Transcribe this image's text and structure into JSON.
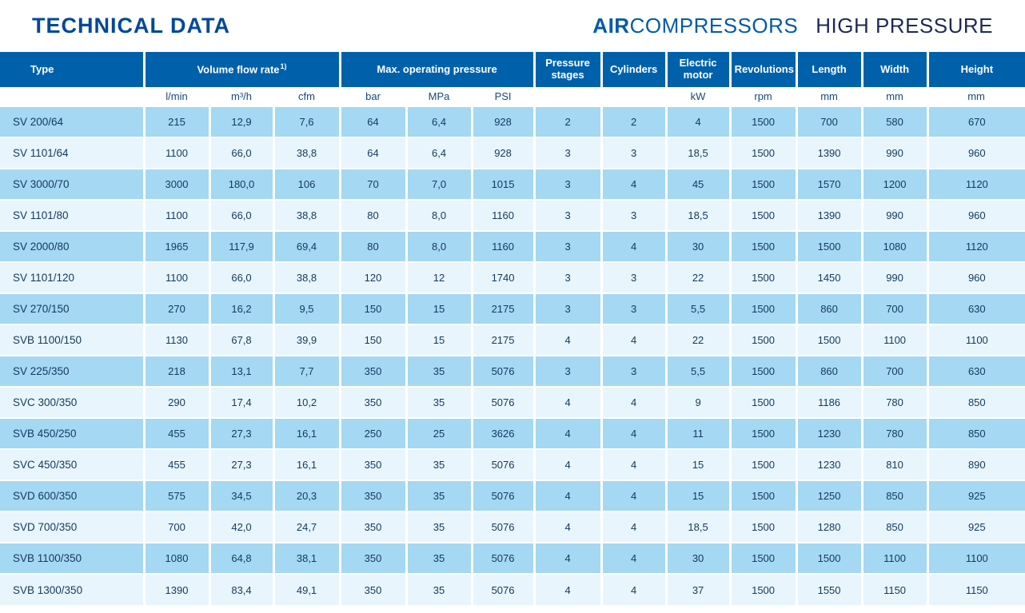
{
  "header": {
    "title": "TECHNICAL DATA",
    "brand_bold": "AIR",
    "brand_light": "COMPRESSORS",
    "product_line": "HIGH PRESSURE"
  },
  "colors": {
    "title_blue": "#004899",
    "brand_blue": "#005ba9",
    "product_line_navy": "#1e2a56",
    "header_row_blue": "#0061ab",
    "row_blue": "#a4d8f3",
    "row_light": "#e8f5fc",
    "cell_text": "#14395e",
    "grid_white": "#ffffff"
  },
  "table": {
    "group_headers": [
      {
        "label": "Type",
        "sup": "",
        "span": 1
      },
      {
        "label": "Volume flow rate",
        "sup": "1)",
        "span": 3
      },
      {
        "label": "Max. operating pressure",
        "sup": "",
        "span": 3
      },
      {
        "label": "Pressure stages",
        "sup": "",
        "span": 1
      },
      {
        "label": "Cylinders",
        "sup": "",
        "span": 1
      },
      {
        "label": "Electric motor",
        "sup": "",
        "span": 1
      },
      {
        "label": "Revolutions",
        "sup": "",
        "span": 1
      },
      {
        "label": "Length",
        "sup": "",
        "span": 1
      },
      {
        "label": "Width",
        "sup": "",
        "span": 1
      },
      {
        "label": "Height",
        "sup": "",
        "span": 1
      }
    ],
    "units": [
      "",
      "l/min",
      "m³/h",
      "cfm",
      "bar",
      "MPa",
      "PSI",
      "",
      "",
      "kW",
      "rpm",
      "mm",
      "mm",
      "mm"
    ],
    "rows": [
      {
        "type": "SV 200/64",
        "values": [
          "215",
          "12,9",
          "7,6",
          "64",
          "6,4",
          "928",
          "2",
          "2",
          "4",
          "1500",
          "700",
          "580",
          "670"
        ]
      },
      {
        "type": "SV 1101/64",
        "values": [
          "1100",
          "66,0",
          "38,8",
          "64",
          "6,4",
          "928",
          "3",
          "3",
          "18,5",
          "1500",
          "1390",
          "990",
          "960"
        ]
      },
      {
        "type": "SV 3000/70",
        "values": [
          "3000",
          "180,0",
          "106",
          "70",
          "7,0",
          "1015",
          "3",
          "4",
          "45",
          "1500",
          "1570",
          "1200",
          "1120"
        ]
      },
      {
        "type": "SV 1101/80",
        "values": [
          "1100",
          "66,0",
          "38,8",
          "80",
          "8,0",
          "1160",
          "3",
          "3",
          "18,5",
          "1500",
          "1390",
          "990",
          "960"
        ]
      },
      {
        "type": "SV 2000/80",
        "values": [
          "1965",
          "117,9",
          "69,4",
          "80",
          "8,0",
          "1160",
          "3",
          "4",
          "30",
          "1500",
          "1500",
          "1080",
          "1120"
        ]
      },
      {
        "type": "SV 1101/120",
        "values": [
          "1100",
          "66,0",
          "38,8",
          "120",
          "12",
          "1740",
          "3",
          "3",
          "22",
          "1500",
          "1450",
          "990",
          "960"
        ]
      },
      {
        "type": "SV 270/150",
        "values": [
          "270",
          "16,2",
          "9,5",
          "150",
          "15",
          "2175",
          "3",
          "3",
          "5,5",
          "1500",
          "860",
          "700",
          "630"
        ]
      },
      {
        "type": "SVB 1100/150",
        "values": [
          "1130",
          "67,8",
          "39,9",
          "150",
          "15",
          "2175",
          "4",
          "4",
          "22",
          "1500",
          "1500",
          "1100",
          "1100"
        ]
      },
      {
        "type": "SV 225/350",
        "values": [
          "218",
          "13,1",
          "7,7",
          "350",
          "35",
          "5076",
          "3",
          "3",
          "5,5",
          "1500",
          "860",
          "700",
          "630"
        ]
      },
      {
        "type": "SVC 300/350",
        "values": [
          "290",
          "17,4",
          "10,2",
          "350",
          "35",
          "5076",
          "4",
          "4",
          "9",
          "1500",
          "1186",
          "780",
          "850"
        ]
      },
      {
        "type": "SVB 450/250",
        "values": [
          "455",
          "27,3",
          "16,1",
          "250",
          "25",
          "3626",
          "4",
          "4",
          "11",
          "1500",
          "1230",
          "780",
          "850"
        ]
      },
      {
        "type": "SVC 450/350",
        "values": [
          "455",
          "27,3",
          "16,1",
          "350",
          "35",
          "5076",
          "4",
          "4",
          "15",
          "1500",
          "1230",
          "810",
          "890"
        ]
      },
      {
        "type": "SVD 600/350",
        "values": [
          "575",
          "34,5",
          "20,3",
          "350",
          "35",
          "5076",
          "4",
          "4",
          "15",
          "1500",
          "1250",
          "850",
          "925"
        ]
      },
      {
        "type": "SVD 700/350",
        "values": [
          "700",
          "42,0",
          "24,7",
          "350",
          "35",
          "5076",
          "4",
          "4",
          "18,5",
          "1500",
          "1280",
          "850",
          "925"
        ]
      },
      {
        "type": "SVB 1100/350",
        "values": [
          "1080",
          "64,8",
          "38,1",
          "350",
          "35",
          "5076",
          "4",
          "4",
          "30",
          "1500",
          "1500",
          "1100",
          "1100"
        ]
      },
      {
        "type": "SVB 1300/350",
        "values": [
          "1390",
          "83,4",
          "49,1",
          "350",
          "35",
          "5076",
          "4",
          "4",
          "37",
          "1500",
          "1550",
          "1150",
          "1150"
        ]
      }
    ]
  }
}
